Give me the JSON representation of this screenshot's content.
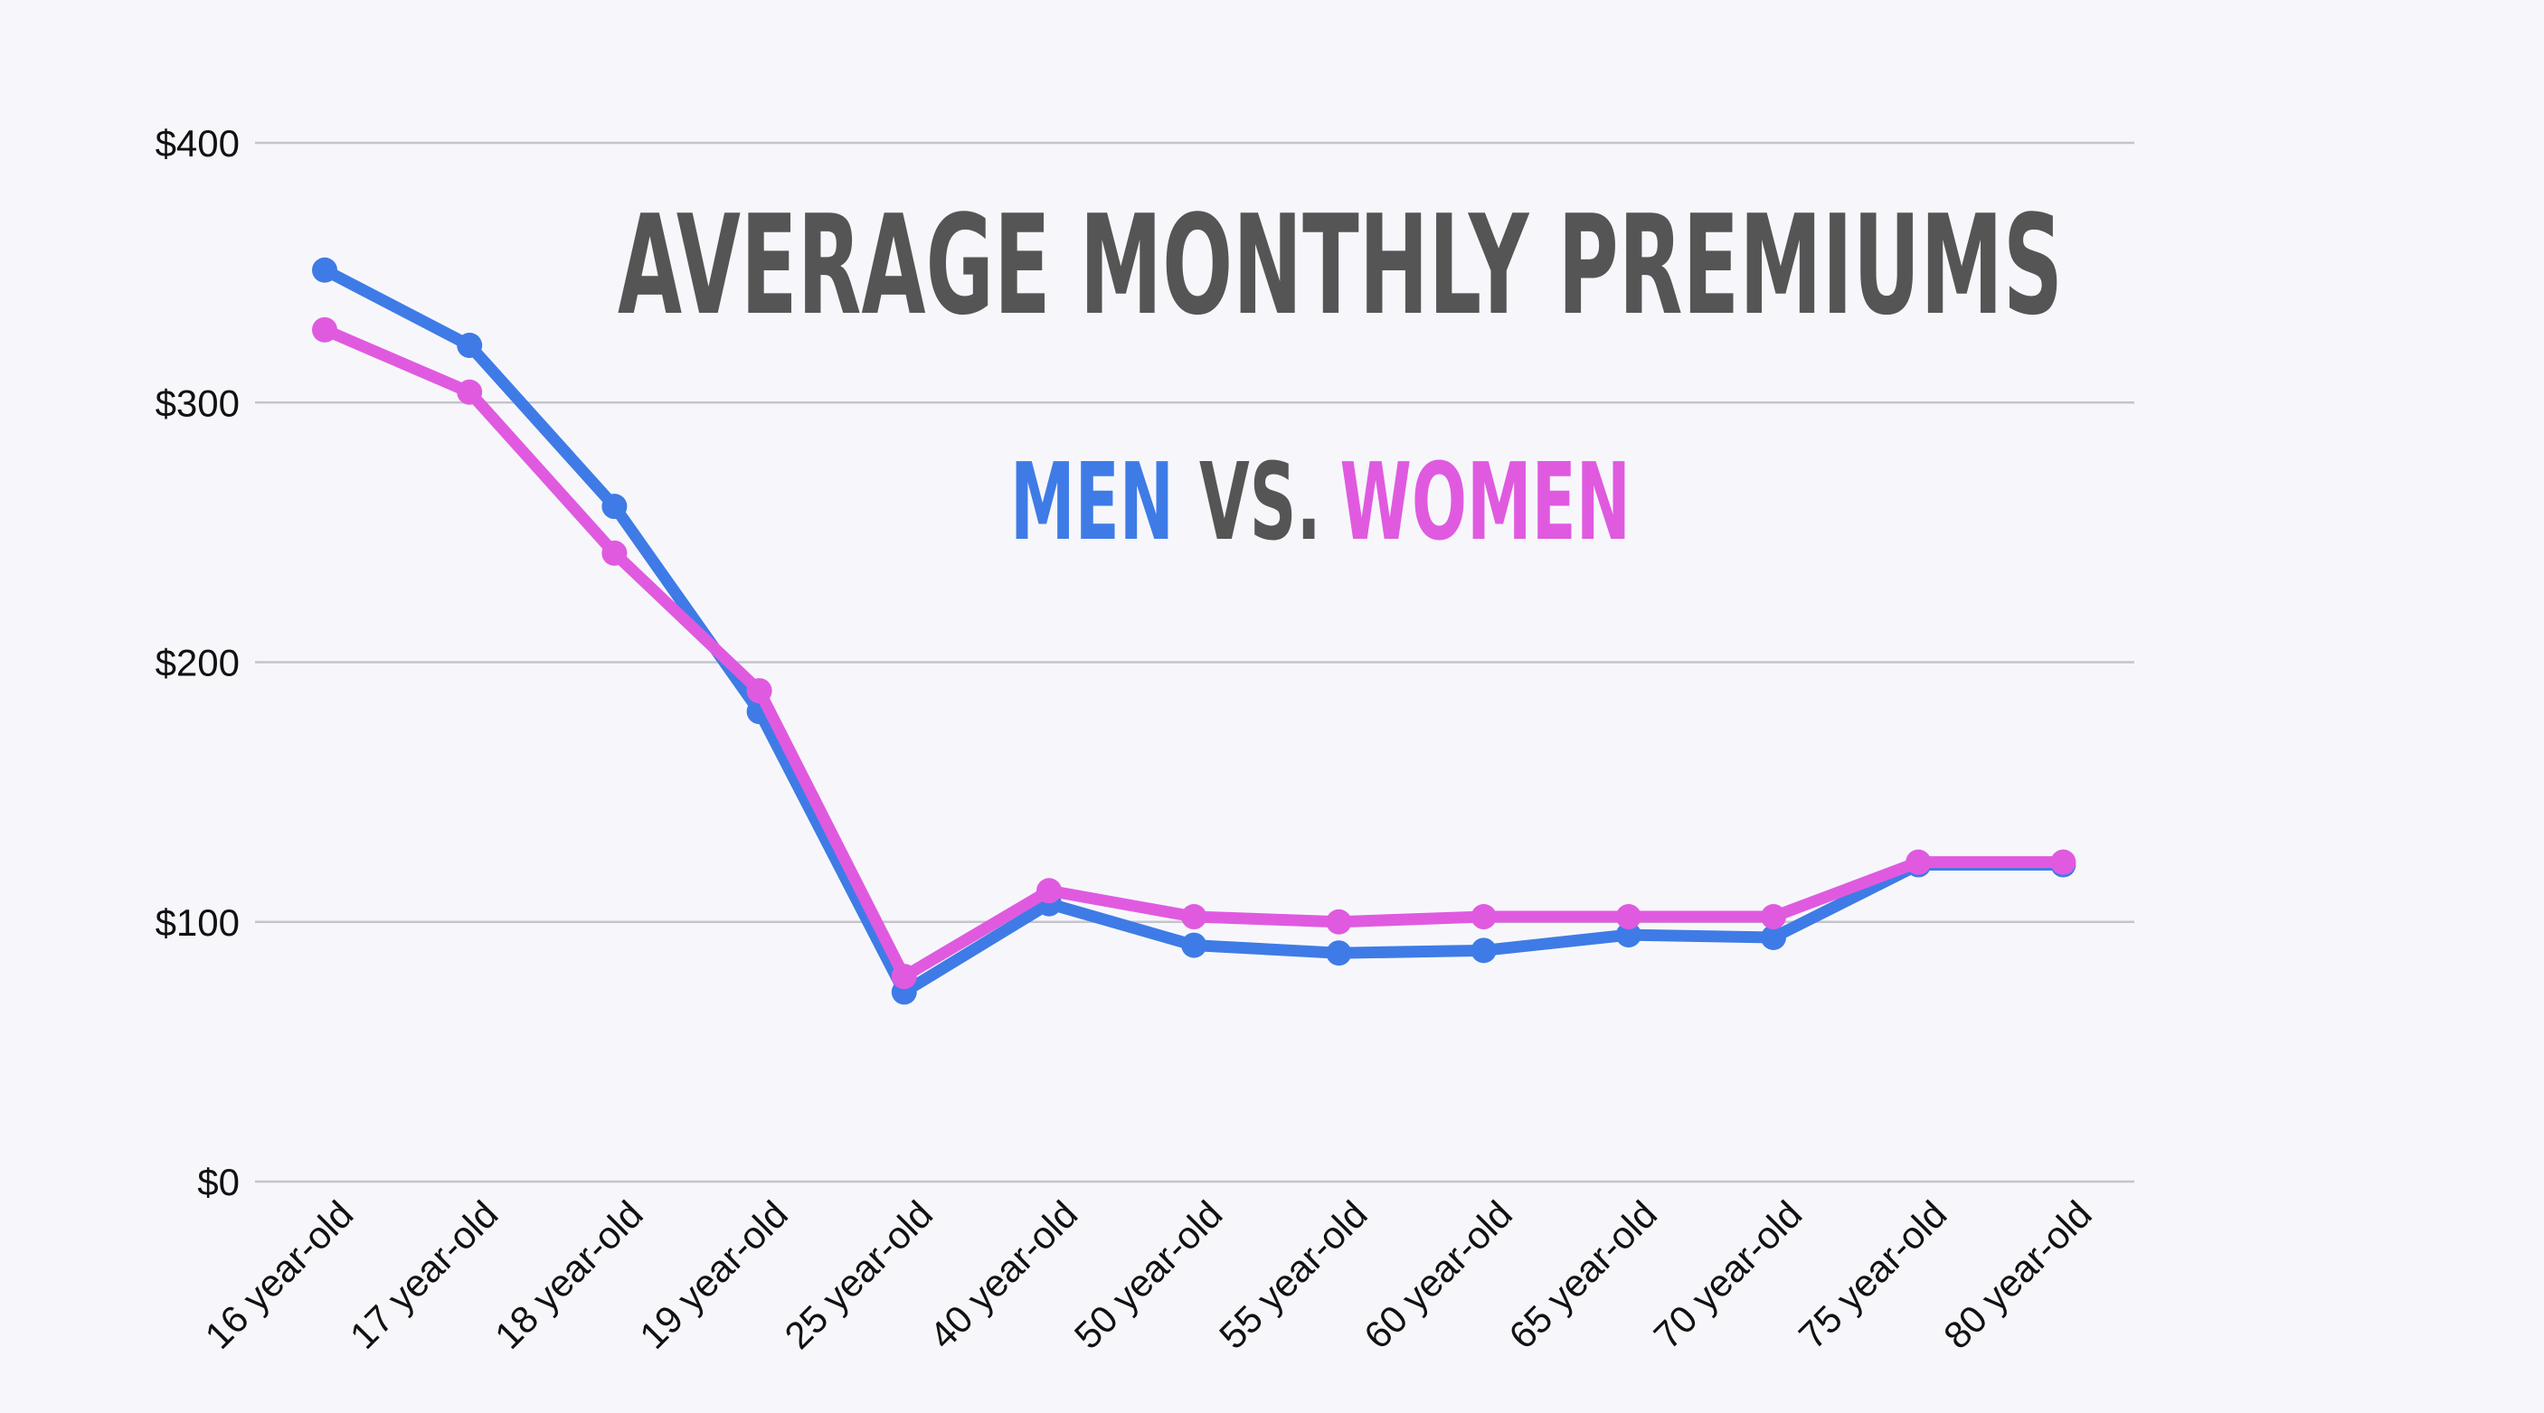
{
  "chart_data": {
    "type": "line",
    "title": "AVERAGE MONTHLY PREMIUMS",
    "subtitle": {
      "men": "MEN",
      "vs": "VS.",
      "women": "WOMEN"
    },
    "categories": [
      "16 year-old",
      "17 year-old",
      "18 year-old",
      "19 year-old",
      "25 year-old",
      "40 year-old",
      "50 year-old",
      "55 year-old",
      "60 year-old",
      "65 year-old",
      "70 year-old",
      "75 year-old",
      "80 year-old"
    ],
    "series": [
      {
        "key": "men",
        "color": "#3f7be6",
        "values": [
          351,
          322,
          260,
          181,
          73,
          107,
          91,
          88,
          89,
          95,
          94,
          122,
          122
        ]
      },
      {
        "key": "women",
        "color": "#e05ae0",
        "values": [
          328,
          304,
          242,
          189,
          79,
          112,
          102,
          100,
          102,
          102,
          102,
          123,
          123
        ]
      }
    ],
    "y_ticks": [
      {
        "value": 0,
        "label": "$0"
      },
      {
        "value": 100,
        "label": "$100"
      },
      {
        "value": 200,
        "label": "$200"
      },
      {
        "value": 300,
        "label": "$300"
      },
      {
        "value": 400,
        "label": "$400"
      }
    ],
    "ylim": [
      0,
      400
    ],
    "grid": true,
    "legend": "none",
    "colors": {
      "title": "#555555",
      "men": "#3f7be6",
      "women": "#e05ae0",
      "grid": "#c4c4cc",
      "background": "#f7f7fb"
    }
  }
}
